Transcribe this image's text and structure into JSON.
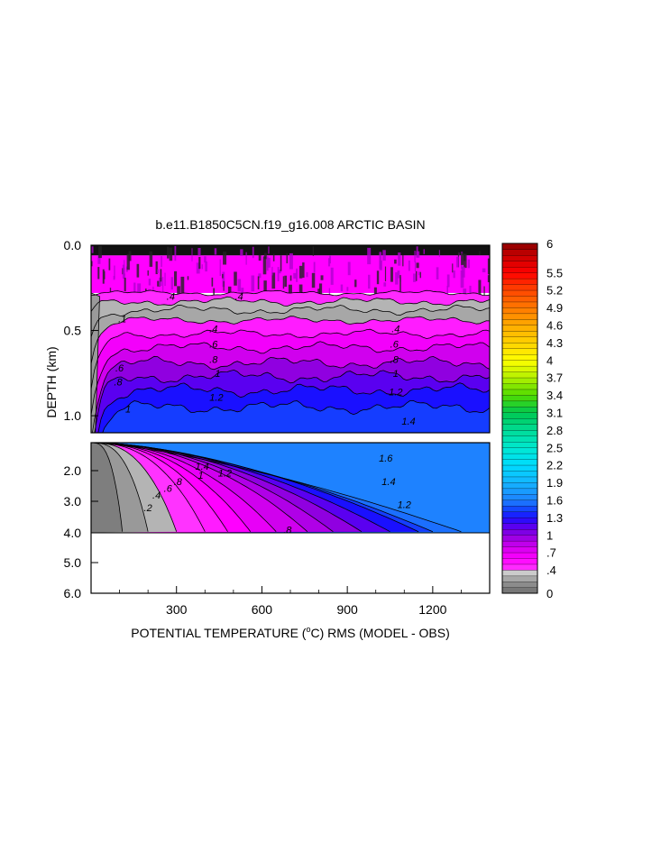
{
  "chart_data": {
    "type": "heatmap",
    "title": "b.e11.B1850C5CN.f19_g16.008 ARCTIC BASIN",
    "xlabel_prefix": "POTENTIAL TEMPERATURE (",
    "xlabel_unit_o": "o",
    "xlabel_suffix": "C) RMS (MODEL - OBS)",
    "ylabel": "DEPTH (km)",
    "x_range": [
      0,
      1400
    ],
    "x_ticks": [
      {
        "v": 300,
        "label": "300"
      },
      {
        "v": 600,
        "label": "600"
      },
      {
        "v": 900,
        "label": "900"
      },
      {
        "v": 1200,
        "label": "1200"
      }
    ],
    "upper_panel": {
      "depth_range": [
        0.0,
        1.1
      ],
      "y_ticks": [
        {
          "v": 0.0,
          "label": "0.0"
        },
        {
          "v": 0.5,
          "label": "0.5"
        },
        {
          "v": 1.0,
          "label": "1.0"
        }
      ]
    },
    "lower_panel": {
      "depth_range": [
        1.1,
        6.0
      ],
      "data_bottom_depth": 4.0,
      "y_ticks": [
        {
          "v": 2.0,
          "label": "2.0"
        },
        {
          "v": 3.0,
          "label": "3.0"
        },
        {
          "v": 4.0,
          "label": "4.0"
        },
        {
          "v": 5.0,
          "label": "5.0"
        },
        {
          "v": 6.0,
          "label": "6.0"
        }
      ]
    },
    "colorbar": {
      "min": 0,
      "max": 6,
      "step": 0.1,
      "labels": [
        "0",
        ".4",
        ".7",
        "1",
        "1.3",
        "1.6",
        "1.9",
        "2.2",
        "2.5",
        "2.8",
        "3.1",
        "3.4",
        "3.7",
        "4",
        "4.3",
        "4.6",
        "4.9",
        "5.2",
        "5.5",
        "6"
      ],
      "label_values": [
        0,
        0.4,
        0.7,
        1.0,
        1.3,
        1.6,
        1.9,
        2.2,
        2.5,
        2.8,
        3.1,
        3.4,
        3.7,
        4.0,
        4.3,
        4.6,
        4.9,
        5.2,
        5.5,
        6.0
      ]
    },
    "contour_labels_upper": [
      {
        "text": ".4",
        "x": 280,
        "depth": 0.3
      },
      {
        "text": ".4",
        "x": 520,
        "depth": 0.3
      },
      {
        "text": ".4",
        "x": 1070,
        "depth": 0.49
      },
      {
        "text": ".4",
        "x": 430,
        "depth": 0.49
      },
      {
        "text": ".1",
        "x": 110,
        "depth": 0.43
      },
      {
        "text": ".6",
        "x": 430,
        "depth": 0.58
      },
      {
        "text": ".6",
        "x": 1065,
        "depth": 0.58
      },
      {
        "text": ".8",
        "x": 430,
        "depth": 0.67
      },
      {
        "text": ".8",
        "x": 1065,
        "depth": 0.67
      },
      {
        "text": ".6",
        "x": 100,
        "depth": 0.72
      },
      {
        "text": ".8",
        "x": 95,
        "depth": 0.8
      },
      {
        "text": "1",
        "x": 445,
        "depth": 0.75
      },
      {
        "text": "1",
        "x": 1070,
        "depth": 0.75
      },
      {
        "text": "1",
        "x": 130,
        "depth": 0.96
      },
      {
        "text": "1.2",
        "x": 440,
        "depth": 0.89
      },
      {
        "text": "1.2",
        "x": 1070,
        "depth": 0.86
      },
      {
        "text": "1.4",
        "x": 1115,
        "depth": 1.03
      }
    ],
    "contour_labels_lower": [
      {
        "text": ".2",
        "x": 200,
        "depth": 3.2
      },
      {
        "text": ".4",
        "x": 230,
        "depth": 2.8
      },
      {
        "text": ".6",
        "x": 270,
        "depth": 2.57
      },
      {
        "text": ".8",
        "x": 305,
        "depth": 2.35
      },
      {
        "text": "1",
        "x": 385,
        "depth": 2.15
      },
      {
        "text": "1.4",
        "x": 390,
        "depth": 1.85
      },
      {
        "text": "1.2",
        "x": 470,
        "depth": 2.08
      },
      {
        "text": ".8",
        "x": 690,
        "depth": 3.9
      },
      {
        "text": "1.6",
        "x": 1035,
        "depth": 1.6
      },
      {
        "text": "1.4",
        "x": 1045,
        "depth": 2.35
      },
      {
        "text": "1.2",
        "x": 1100,
        "depth": 3.1
      }
    ]
  }
}
